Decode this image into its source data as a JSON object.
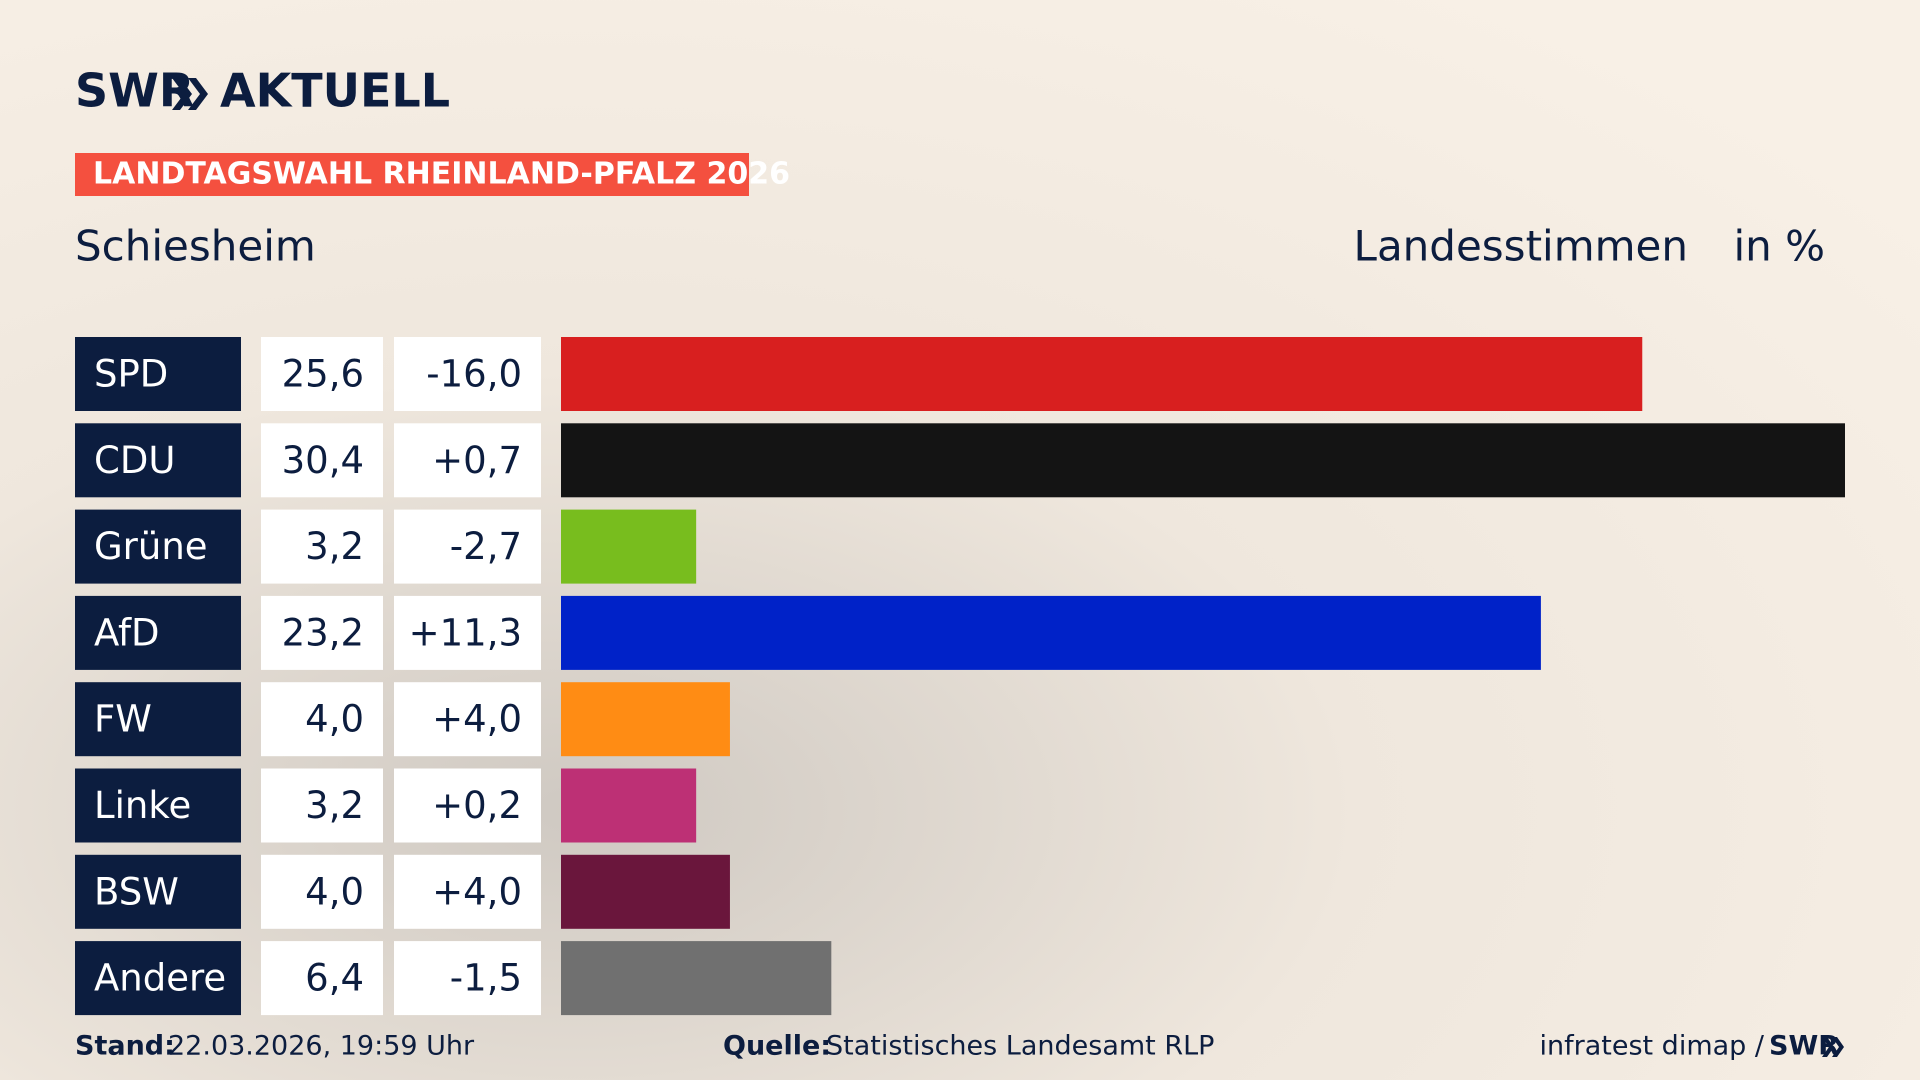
{
  "brand": {
    "name": "SWR",
    "product": "AKTUELL"
  },
  "banner": "LANDTAGSWAHL RHEINLAND-PFALZ 2026",
  "chart_data": {
    "type": "bar",
    "orientation": "horizontal",
    "title": "Schiesheim",
    "value_header": "Landesstimmen",
    "unit": "in %",
    "categories": [
      "SPD",
      "CDU",
      "Grüne",
      "AfD",
      "FW",
      "Linke",
      "BSW",
      "Andere"
    ],
    "values": [
      25.6,
      30.4,
      3.2,
      23.2,
      4.0,
      3.2,
      4.0,
      6.4
    ],
    "value_labels": [
      "25,6",
      "30,4",
      "3,2",
      "23,2",
      "4,0",
      "3,2",
      "4,0",
      "6,4"
    ],
    "colors": [
      "#d81f1f",
      "#141414",
      "#78bd1e",
      "#0022c8",
      "#ff8c14",
      "#bd3075",
      "#6a163c",
      "#707070"
    ],
    "changes": {
      "values": [
        -16.0,
        0.7,
        -2.7,
        11.3,
        4.0,
        0.2,
        4.0,
        -1.5
      ],
      "value_labels": [
        "-16,0",
        "+0,7",
        "-2,7",
        "+11,3",
        "+4,0",
        "+0,2",
        "+4,0",
        "-1,5"
      ]
    }
  },
  "footer": {
    "stand_label": "Stand:",
    "stand": "22.03.2026, 19:59 Uhr",
    "source_label": "Quelle:",
    "source": "Statistisches Landesamt RLP",
    "credit": "infratest dimap /",
    "credit_brand": "SWR"
  }
}
